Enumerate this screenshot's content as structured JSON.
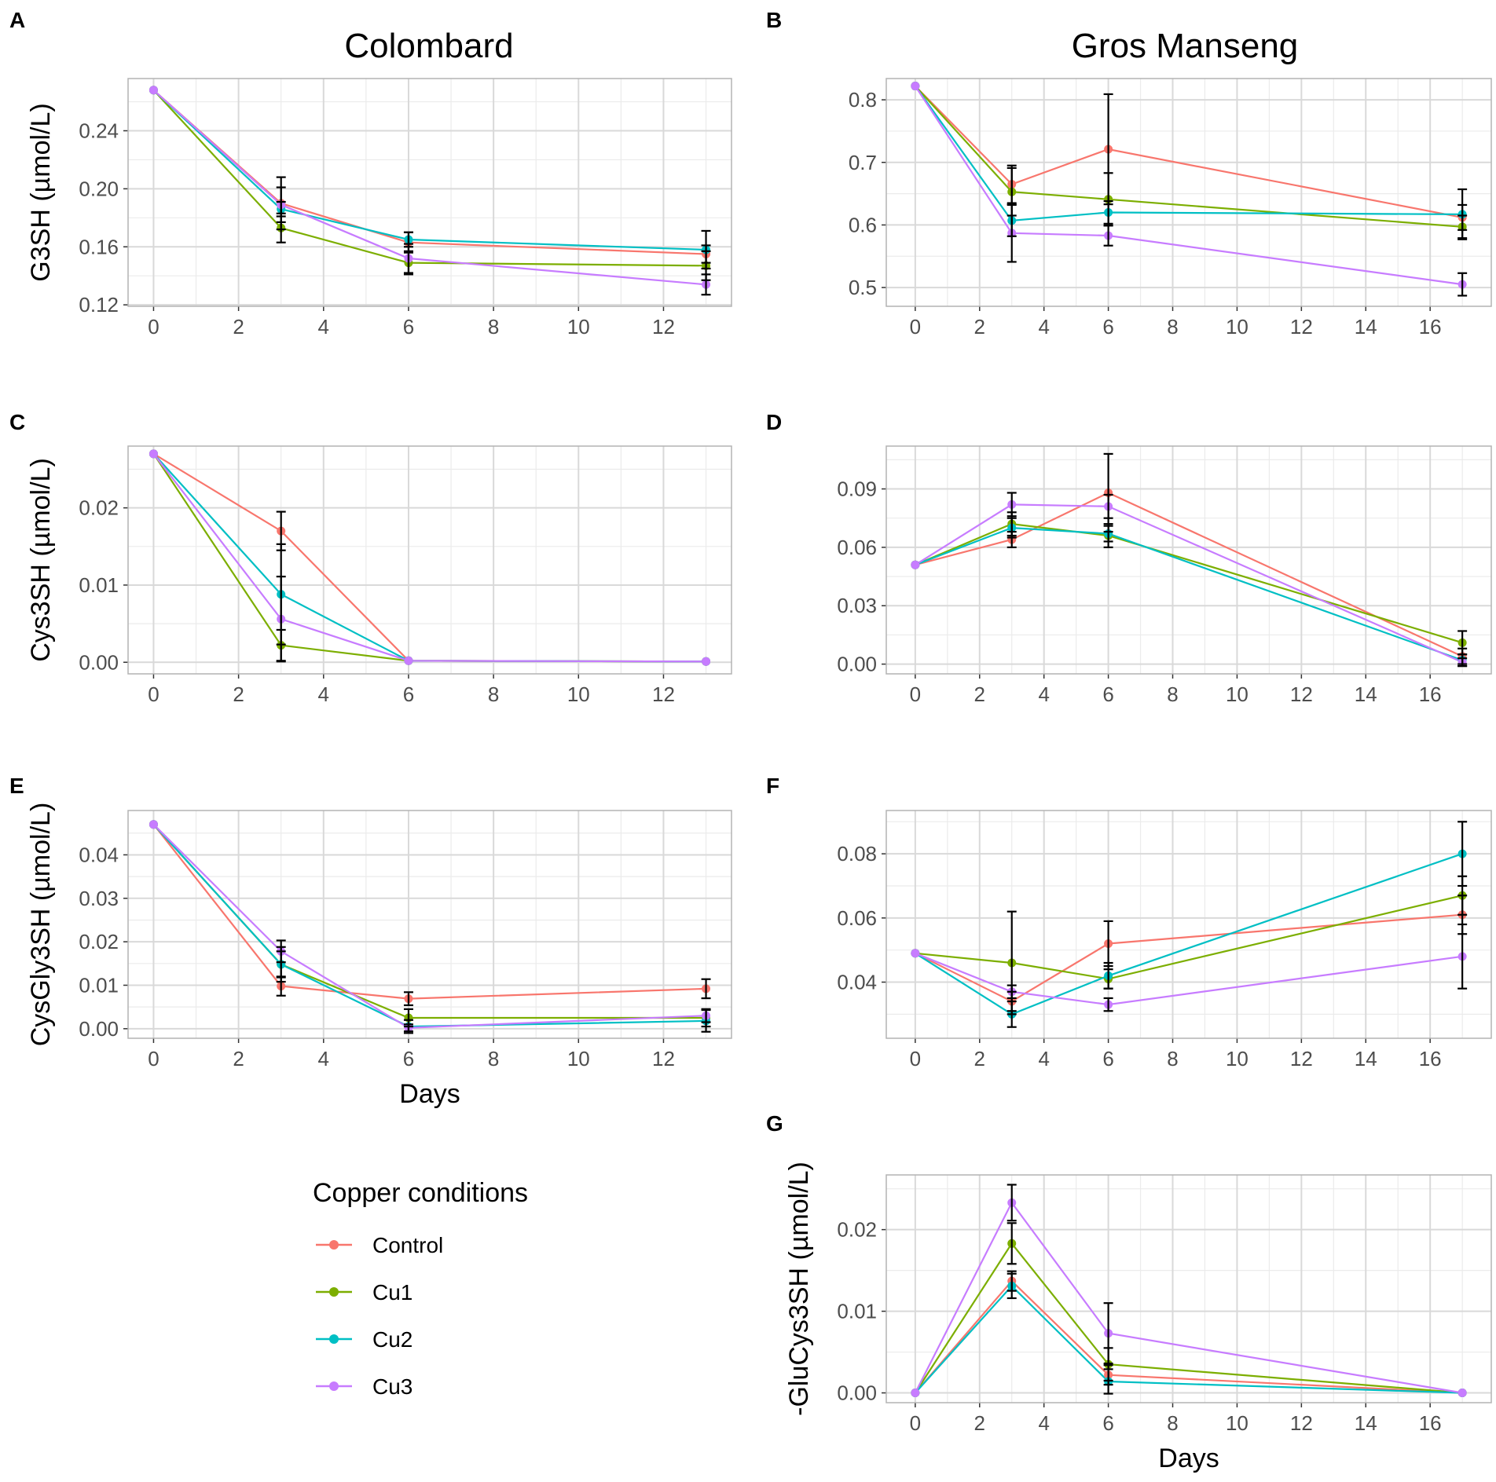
{
  "figure": {
    "column_titles": {
      "left": "Colombard",
      "right": "Gros Manseng"
    },
    "legend": {
      "title": "Copper conditions",
      "entries": [
        {
          "label": "Control",
          "color": "#F8766D"
        },
        {
          "label": "Cu1",
          "color": "#7CAE00"
        },
        {
          "label": "Cu2",
          "color": "#00BFC4"
        },
        {
          "label": "Cu3",
          "color": "#C77CFF"
        }
      ]
    }
  },
  "chart_data": [
    {
      "panel": "A",
      "type": "line",
      "title": "Colombard",
      "xlabel": "",
      "ylabel": "G3SH (µmol/L)",
      "xlim": [
        -0.6,
        13.6
      ],
      "ylim": [
        0.119,
        0.276
      ],
      "xticks": [
        0,
        2,
        4,
        6,
        8,
        10,
        12
      ],
      "xtick_labels": [
        "0",
        "2",
        "4",
        "6",
        "8",
        "10",
        "12"
      ],
      "yticks": [
        0.12,
        0.16,
        0.2,
        0.24
      ],
      "ytick_labels": [
        "0.12",
        "0.16",
        "0.20",
        "0.24"
      ],
      "x": [
        0,
        3,
        6,
        13
      ],
      "series": [
        {
          "name": "Control",
          "values": [
            0.268,
            0.19,
            0.163,
            0.155
          ],
          "err": [
            0,
            0.018,
            0.007,
            0.006
          ]
        },
        {
          "name": "Cu1",
          "values": [
            0.268,
            0.173,
            0.149,
            0.147
          ],
          "err": [
            0,
            0.01,
            0.008,
            0.01
          ]
        },
        {
          "name": "Cu2",
          "values": [
            0.268,
            0.186,
            0.165,
            0.158
          ],
          "err": [
            0,
            0.005,
            0.005,
            0.013
          ]
        },
        {
          "name": "Cu3",
          "values": [
            0.268,
            0.189,
            0.152,
            0.134
          ],
          "err": [
            0,
            0.012,
            0.01,
            0.007
          ]
        }
      ]
    },
    {
      "panel": "B",
      "type": "line",
      "title": "Gros Manseng",
      "xlabel": "",
      "ylabel": "",
      "xlim": [
        -0.9,
        17.9
      ],
      "ylim": [
        0.47,
        0.834
      ],
      "xticks": [
        0,
        2,
        4,
        6,
        8,
        10,
        12,
        14,
        16
      ],
      "xtick_labels": [
        "0",
        "2",
        "4",
        "6",
        "8",
        "10",
        "12",
        "14",
        "16"
      ],
      "yticks": [
        0.5,
        0.6,
        0.7,
        0.8
      ],
      "ytick_labels": [
        "0.5",
        "0.6",
        "0.7",
        "0.8"
      ],
      "x": [
        0,
        3,
        6,
        17
      ],
      "series": [
        {
          "name": "Control",
          "values": [
            0.822,
            0.665,
            0.721,
            0.612
          ],
          "err": [
            0,
            0.03,
            0.088,
            0.02
          ]
        },
        {
          "name": "Cu1",
          "values": [
            0.822,
            0.653,
            0.641,
            0.597
          ],
          "err": [
            0,
            0.038,
            0.042,
            0.018
          ]
        },
        {
          "name": "Cu2",
          "values": [
            0.822,
            0.607,
            0.62,
            0.617
          ],
          "err": [
            0,
            0.025,
            0.018,
            0.04
          ]
        },
        {
          "name": "Cu3",
          "values": [
            0.822,
            0.587,
            0.583,
            0.505
          ],
          "err": [
            0,
            0.046,
            0.016,
            0.018
          ]
        }
      ]
    },
    {
      "panel": "C",
      "type": "line",
      "xlabel": "",
      "ylabel": "Cys3SH (µmol/L)",
      "xlim": [
        -0.6,
        13.6
      ],
      "ylim": [
        -0.0015,
        0.028
      ],
      "xticks": [
        0,
        2,
        4,
        6,
        8,
        10,
        12
      ],
      "xtick_labels": [
        "0",
        "2",
        "4",
        "6",
        "8",
        "10",
        "12"
      ],
      "yticks": [
        0.0,
        0.01,
        0.02
      ],
      "ytick_labels": [
        "0.00",
        "0.01",
        "0.02"
      ],
      "x": [
        0,
        3,
        6,
        13
      ],
      "series": [
        {
          "name": "Control",
          "values": [
            0.027,
            0.017,
            0.0002,
            0.0001
          ],
          "err": [
            0,
            0.0025,
            0,
            0
          ]
        },
        {
          "name": "Cu1",
          "values": [
            0.027,
            0.0022,
            0.0002,
            0.0001
          ],
          "err": [
            0,
            0.002,
            0,
            0
          ]
        },
        {
          "name": "Cu2",
          "values": [
            0.027,
            0.0088,
            0.0002,
            0.0001
          ],
          "err": [
            0,
            0.0065,
            0,
            0
          ]
        },
        {
          "name": "Cu3",
          "values": [
            0.027,
            0.0056,
            0.0002,
            0.0001
          ],
          "err": [
            0,
            0.0055,
            0,
            0
          ]
        }
      ]
    },
    {
      "panel": "D",
      "type": "line",
      "xlabel": "",
      "ylabel": "",
      "xlim": [
        -0.9,
        17.9
      ],
      "ylim": [
        -0.005,
        0.112
      ],
      "xticks": [
        0,
        2,
        4,
        6,
        8,
        10,
        12,
        14,
        16
      ],
      "xtick_labels": [
        "0",
        "2",
        "4",
        "6",
        "8",
        "10",
        "12",
        "14",
        "16"
      ],
      "yticks": [
        0.0,
        0.03,
        0.06,
        0.09
      ],
      "ytick_labels": [
        "0.00",
        "0.03",
        "0.06",
        "0.09"
      ],
      "x": [
        0,
        3,
        6,
        17
      ],
      "series": [
        {
          "name": "Control",
          "values": [
            0.051,
            0.064,
            0.088,
            0.004
          ],
          "err": [
            0,
            0.004,
            0.02,
            0.004
          ]
        },
        {
          "name": "Cu1",
          "values": [
            0.051,
            0.072,
            0.066,
            0.011
          ],
          "err": [
            0,
            0.006,
            0.006,
            0.006
          ]
        },
        {
          "name": "Cu2",
          "values": [
            0.051,
            0.07,
            0.067,
            0.002
          ],
          "err": [
            0,
            0.005,
            0.004,
            0.003
          ]
        },
        {
          "name": "Cu3",
          "values": [
            0.051,
            0.082,
            0.081,
            0.001
          ],
          "err": [
            0,
            0.006,
            0.006,
            0.002
          ]
        }
      ]
    },
    {
      "panel": "E",
      "type": "line",
      "xlabel": "Days",
      "ylabel": "CysGly3SH (µmol/L)",
      "xlim": [
        -0.6,
        13.6
      ],
      "ylim": [
        -0.0022,
        0.0502
      ],
      "xticks": [
        0,
        2,
        4,
        6,
        8,
        10,
        12
      ],
      "xtick_labels": [
        "0",
        "2",
        "4",
        "6",
        "8",
        "10",
        "12"
      ],
      "yticks": [
        0.0,
        0.01,
        0.02,
        0.03,
        0.04
      ],
      "ytick_labels": [
        "0.00",
        "0.01",
        "0.02",
        "0.03",
        "0.04"
      ],
      "x": [
        0,
        3,
        6,
        13
      ],
      "series": [
        {
          "name": "Control",
          "values": [
            0.047,
            0.0098,
            0.0069,
            0.0092
          ],
          "err": [
            0,
            0.0022,
            0.0015,
            0.0022
          ]
        },
        {
          "name": "Cu1",
          "values": [
            0.047,
            0.0148,
            0.0025,
            0.0025
          ],
          "err": [
            0,
            0.004,
            0.002,
            0.002
          ]
        },
        {
          "name": "Cu2",
          "values": [
            0.047,
            0.0148,
            0.0005,
            0.0018
          ],
          "err": [
            0,
            0.003,
            0.0015,
            0.0025
          ]
        },
        {
          "name": "Cu3",
          "values": [
            0.047,
            0.0178,
            0.0002,
            0.003
          ],
          "err": [
            0,
            0.0025,
            0.0008,
            0.0015
          ]
        }
      ]
    },
    {
      "panel": "F",
      "type": "line",
      "xlabel": "",
      "ylabel": "",
      "xlim": [
        -0.9,
        17.9
      ],
      "ylim": [
        0.0225,
        0.0935
      ],
      "xticks": [
        0,
        2,
        4,
        6,
        8,
        10,
        12,
        14,
        16
      ],
      "xtick_labels": [
        "0",
        "2",
        "4",
        "6",
        "8",
        "10",
        "12",
        "14",
        "16"
      ],
      "yticks": [
        0.04,
        0.06,
        0.08
      ],
      "ytick_labels": [
        "0.04",
        "0.06",
        "0.08"
      ],
      "x": [
        0,
        3,
        6,
        17
      ],
      "series": [
        {
          "name": "Control",
          "values": [
            0.049,
            0.034,
            0.052,
            0.061
          ],
          "err": [
            0,
            0.003,
            0.007,
            0.006
          ]
        },
        {
          "name": "Cu1",
          "values": [
            0.049,
            0.046,
            0.041,
            0.067
          ],
          "err": [
            0,
            0.016,
            0.003,
            0.006
          ]
        },
        {
          "name": "Cu2",
          "values": [
            0.049,
            0.03,
            0.042,
            0.08
          ],
          "err": [
            0,
            0.004,
            0.004,
            0.01
          ]
        },
        {
          "name": "Cu3",
          "values": [
            0.049,
            0.037,
            0.033,
            0.048
          ],
          "err": [
            0,
            0.002,
            0.002,
            0.01
          ]
        }
      ]
    },
    {
      "panel": "G",
      "type": "line",
      "xlabel": "Days",
      "ylabel": "-GluCys3SH (µmol/L)",
      "xlim": [
        -0.9,
        17.9
      ],
      "ylim": [
        -0.0012,
        0.0267
      ],
      "xticks": [
        0,
        2,
        4,
        6,
        8,
        10,
        12,
        14,
        16
      ],
      "xtick_labels": [
        "0",
        "2",
        "4",
        "6",
        "8",
        "10",
        "12",
        "14",
        "16"
      ],
      "yticks": [
        0.0,
        0.01,
        0.02
      ],
      "ytick_labels": [
        "0.00",
        "0.01",
        "0.02"
      ],
      "x": [
        0,
        3,
        6,
        17
      ],
      "series": [
        {
          "name": "Control",
          "values": [
            0.0,
            0.0137,
            0.0022,
            0.0
          ],
          "err": [
            0,
            0.0012,
            0.0012,
            0
          ]
        },
        {
          "name": "Cu1",
          "values": [
            0.0,
            0.0183,
            0.0035,
            0.0
          ],
          "err": [
            0,
            0.0025,
            0.002,
            0
          ]
        },
        {
          "name": "Cu2",
          "values": [
            0.0,
            0.0131,
            0.0014,
            0.0
          ],
          "err": [
            0,
            0.0015,
            0.0015,
            0
          ]
        },
        {
          "name": "Cu3",
          "values": [
            0.0,
            0.0233,
            0.0073,
            0.0
          ],
          "err": [
            0,
            0.0022,
            0.0037,
            0
          ]
        }
      ]
    }
  ]
}
